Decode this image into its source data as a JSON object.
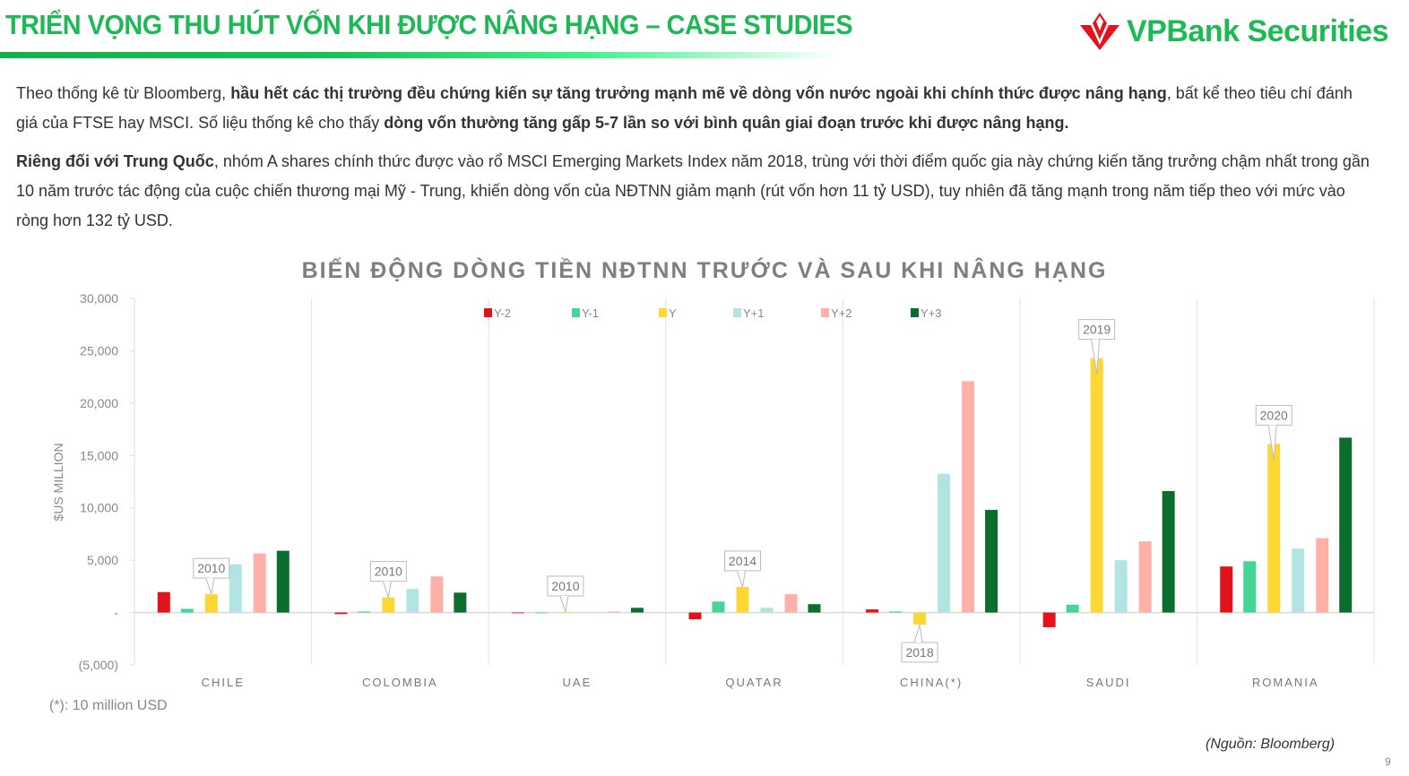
{
  "header": {
    "title": "TRIỂN VỌNG THU HÚT VỐN  KHI ĐƯỢC NÂNG HẠNG – CASE STUDIES",
    "logo_text": "VPBank Securities"
  },
  "body": {
    "p1_a": "Theo thống kê từ Bloomberg, ",
    "p1_b": "hầu hết các thị trường đều chứng kiến sự tăng trưởng mạnh mẽ về dòng vốn nước ngoài khi chính thức được nâng hạng",
    "p1_c": ", bất kể theo tiêu chí đánh giá của FTSE hay MSCI. Số liệu thống kê cho thấy ",
    "p1_d": "dòng vốn thường tăng gấp 5-7 lần so với bình quân giai đoạn trước khi được nâng hạng.",
    "p2_a": "Riêng đối với Trung Quốc",
    "p2_b": ", nhóm A shares chính thức được vào rổ MSCI Emerging Markets Index năm 2018, trùng với thời điểm quốc gia này chứng kiến tăng trưởng chậm nhất trong gần 10 năm trước tác động của cuộc chiến thương mại Mỹ - Trung, khiến dòng vốn của NĐTNN giảm mạnh (rút vốn hơn 11 tỷ USD), tuy nhiên đã tăng mạnh trong năm tiếp theo với mức vào ròng hơn 132 tỷ USD."
  },
  "chart_data": {
    "type": "bar",
    "title": "BIẾN ĐỘNG DÒNG TIỀN NĐTNN TRƯỚC VÀ SAU KHI NÂNG HẠNG",
    "ylabel": "$US MILLION",
    "xlabel": "",
    "ylim": [
      -5000,
      30000
    ],
    "yticks": [
      30000,
      25000,
      20000,
      15000,
      10000,
      5000,
      0,
      -5000
    ],
    "ytick_labels": [
      "30,000",
      "25,000",
      "20,000",
      "15,000",
      "10,000",
      "5,000",
      "-",
      "(5,000)"
    ],
    "grid": false,
    "legend": "top",
    "categories": [
      "CHILE",
      "COLOMBIA",
      "UAE",
      "QUATAR",
      "CHINA(*)",
      "SAUDI",
      "ROMANIA"
    ],
    "series": [
      {
        "name": "Y-2",
        "color": "#e3121b",
        "values": [
          1950,
          -150,
          0,
          -650,
          300,
          -1400,
          4400
        ]
      },
      {
        "name": "Y-1",
        "color": "#45d696",
        "values": [
          350,
          100,
          0,
          1050,
          100,
          750,
          4900
        ]
      },
      {
        "name": "Y",
        "color": "#fdd835",
        "values": [
          1750,
          1450,
          50,
          2450,
          -1150,
          24300,
          16100
        ]
      },
      {
        "name": "Y+1",
        "color": "#b2e4e3",
        "values": [
          4600,
          2250,
          30,
          450,
          13250,
          5000,
          6100
        ]
      },
      {
        "name": "Y+2",
        "color": "#ffb1a8",
        "values": [
          5650,
          3450,
          100,
          1750,
          22100,
          6800,
          7100
        ]
      },
      {
        "name": "Y+3",
        "color": "#0b6e2f",
        "values": [
          5900,
          1900,
          450,
          800,
          9800,
          11600,
          16700
        ]
      }
    ],
    "annotations": [
      "2010",
      "2010",
      "2010",
      "2014",
      "2018",
      "2019",
      "2020"
    ],
    "footnote": "(*): 10 million USD",
    "source": "(Nguồn:  Bloomberg)"
  },
  "page_number": "9"
}
